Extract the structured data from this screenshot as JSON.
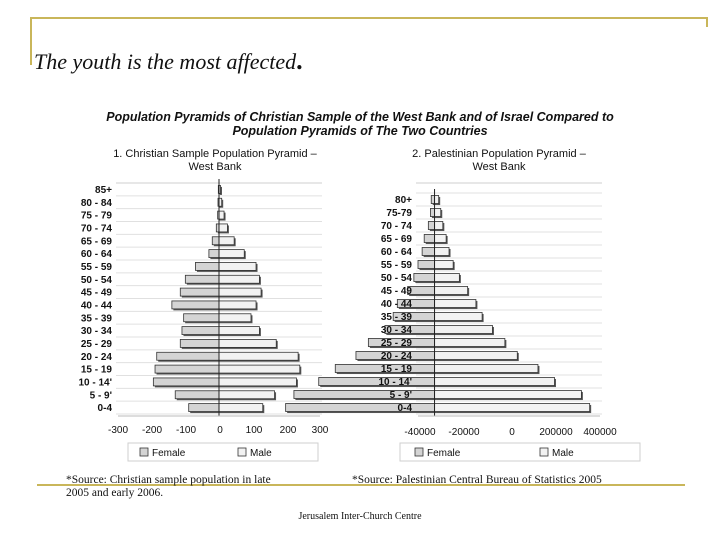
{
  "slide": {
    "title": "The youth is the most affected",
    "title_dot": ".",
    "footer": "Jerusalem Inter-Church Centre"
  },
  "figure": {
    "title_line1": "Population Pyramids of Christian Sample of the West Bank and of Israel Compared to",
    "title_line2": "Population Pyramids of The Two Countries"
  },
  "colors": {
    "female": "#d4d4d4",
    "male": "#f2f2f2",
    "bar_edge": "#333333",
    "shadow": "#555555",
    "frame": "#c9b65a"
  },
  "chart_data": [
    {
      "type": "bar",
      "orientation": "horizontal-pyramid",
      "subtitle_line1": "1. Christian Sample Population Pyramid –",
      "subtitle_line2": "West Bank",
      "categories": [
        "0-4",
        "5 - 9'",
        "10 - 14'",
        "15 - 19",
        "20 - 24",
        "25 - 29",
        "30 - 34",
        "35 - 39",
        "40 - 44",
        "45 - 49",
        "50 - 54",
        "55 - 59",
        "60 - 64",
        "65 - 69",
        "70 - 74",
        "75 - 79",
        "80 - 84",
        "85+"
      ],
      "series": [
        {
          "name": "Female",
          "values": [
            -90,
            -130,
            -195,
            -190,
            -185,
            -115,
            -110,
            -105,
            -140,
            -115,
            -100,
            -70,
            -30,
            -20,
            -8,
            -4,
            -3,
            -2
          ]
        },
        {
          "name": "Male",
          "values": [
            130,
            165,
            230,
            240,
            235,
            170,
            120,
            95,
            110,
            125,
            120,
            110,
            75,
            45,
            25,
            15,
            8,
            3
          ]
        }
      ],
      "xlim": [
        -300,
        300
      ],
      "xticks": [
        -300,
        -200,
        -100,
        0,
        100,
        200,
        300
      ],
      "xtick_labels": [
        "-300",
        "-200",
        "-100",
        "0",
        "100",
        "200",
        "300"
      ],
      "legend_position": "bottom",
      "source_line1": "*Source: Christian sample population in late",
      "source_line2": "2005 and early 2006."
    },
    {
      "type": "bar",
      "orientation": "horizontal-pyramid",
      "subtitle_line1": "2. Palestinian Population Pyramid –",
      "subtitle_line2": "West Bank",
      "categories": [
        "0-4",
        "5 - 9'",
        "10 - 14'",
        "15 - 19",
        "20 - 24",
        "25 - 29",
        "30 - 34",
        "35 - 39",
        "40 - 44",
        "45 - 49",
        "50 - 54",
        "55 - 59",
        "60 - 64",
        "65 - 69",
        "70 - 74",
        "75-79",
        "80+"
      ],
      "series": [
        {
          "name": "Female",
          "values": [
            -360000,
            -340000,
            -280000,
            -240000,
            -190000,
            -160000,
            -120000,
            -100000,
            -90000,
            -65000,
            -50000,
            -40000,
            -30000,
            -25000,
            -15000,
            -10000,
            -8000
          ]
        },
        {
          "name": "Male",
          "values": [
            375000,
            355000,
            290000,
            250000,
            200000,
            170000,
            140000,
            115000,
            100000,
            80000,
            60000,
            45000,
            35000,
            28000,
            20000,
            15000,
            10000
          ]
        }
      ],
      "xlim": [
        -40000,
        400000
      ],
      "xtick_labels": [
        "-40000",
        "-20000",
        "0",
        "200000",
        "400000"
      ],
      "legend_position": "bottom",
      "source_line1": "*Source: Palestinian Central Bureau of Statistics 2005"
    }
  ]
}
